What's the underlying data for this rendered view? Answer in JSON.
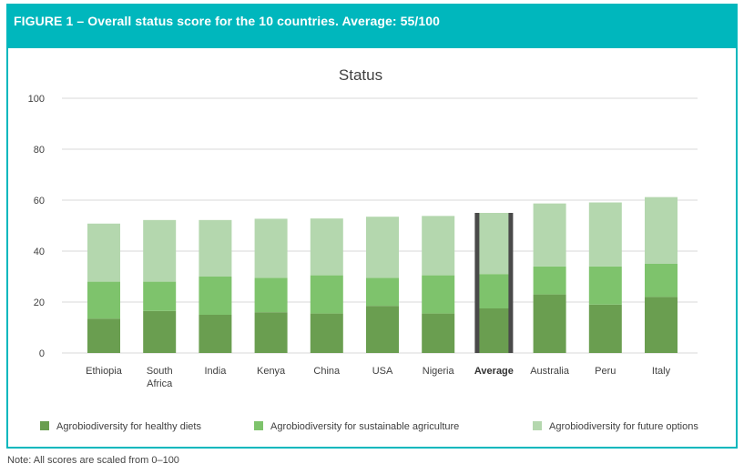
{
  "figure": {
    "title": "FIGURE 1 – Overall status score for the 10 countries. Average: 55/100",
    "note": "Note: All scores are scaled from 0–100"
  },
  "colors": {
    "header_bg": "#00b7bd",
    "healthy_diets": "#6a9e50",
    "sustainable_agriculture": "#7ec36c",
    "future_options": "#b4d7ae",
    "average_outline": "#4a4a4a",
    "grid": "#d9d9d9"
  },
  "chart_data": {
    "type": "bar",
    "stacked": true,
    "title": "Status",
    "xlabel": "",
    "ylabel": "",
    "ylim": [
      0,
      100
    ],
    "yticks": [
      0,
      20,
      40,
      60,
      80,
      100
    ],
    "grid": true,
    "legend_position": "bottom",
    "categories": [
      "Ethiopia",
      "South Africa",
      "India",
      "Kenya",
      "China",
      "USA",
      "Nigeria",
      "Average",
      "Australia",
      "Peru",
      "Italy"
    ],
    "category_lines": [
      [
        "Ethiopia"
      ],
      [
        "South",
        "Africa"
      ],
      [
        "India"
      ],
      [
        "Kenya"
      ],
      [
        "China"
      ],
      [
        "USA"
      ],
      [
        "Nigeria"
      ],
      [
        "Average"
      ],
      [
        "Australia"
      ],
      [
        "Peru"
      ],
      [
        "Italy"
      ]
    ],
    "highlight_category": "Average",
    "series": [
      {
        "name": "Agrobiodiversity for healthy diets",
        "values": [
          13.5,
          16.5,
          15,
          16,
          15.5,
          18.5,
          15.5,
          17.5,
          23,
          19,
          22
        ]
      },
      {
        "name": "Agrobiodiversity for sustainable agriculture",
        "values": [
          14.5,
          11.5,
          15,
          13.5,
          15,
          11,
          15,
          13.5,
          11,
          15,
          13
        ]
      },
      {
        "name": "Agrobiodiversity for future options",
        "values": [
          22.8,
          24.2,
          22.2,
          23.2,
          22.3,
          24,
          23.3,
          24,
          24.7,
          25.1,
          26.2
        ]
      }
    ]
  }
}
